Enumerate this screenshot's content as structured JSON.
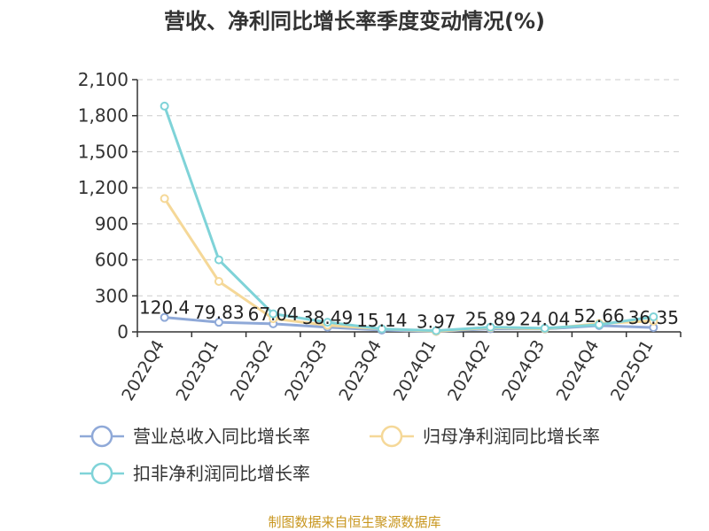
{
  "chart_data": {
    "type": "line",
    "title": "营收、净利同比增长率季度变动情况(%)",
    "categories": [
      "2022Q4",
      "2023Q1",
      "2023Q2",
      "2023Q3",
      "2023Q4",
      "2024Q1",
      "2024Q2",
      "2024Q3",
      "2024Q4",
      "2025Q1"
    ],
    "ylim": [
      0,
      2100
    ],
    "yticks": [
      0,
      300,
      600,
      900,
      1200,
      1500,
      1800,
      2100
    ],
    "ytick_labels": [
      "0",
      "300",
      "600",
      "900",
      "1,200",
      "1,500",
      "1,800",
      "2,100"
    ],
    "grid": true,
    "legend_position": "bottom",
    "series": [
      {
        "name": "营业总收入同比增长率",
        "color": "#8fa9d8",
        "values": [
          120.4,
          79.83,
          67.04,
          38.49,
          15.14,
          3.97,
          25.89,
          24.04,
          52.66,
          36.35
        ],
        "labels": [
          "120.4",
          "79.83",
          "67.04",
          "38.49",
          "15.14",
          "3.97",
          "25.89",
          "24.04",
          "52.66",
          "36.35"
        ]
      },
      {
        "name": "归母净利润同比增长率",
        "color": "#f5d898",
        "values": [
          1110,
          420,
          110,
          55,
          25,
          5,
          35,
          25,
          70,
          90
        ]
      },
      {
        "name": "扣非净利润同比增长率",
        "color": "#7fd3d8",
        "values": [
          1880,
          600,
          150,
          80,
          25,
          10,
          40,
          30,
          60,
          125
        ]
      }
    ],
    "source": "制图数据来自恒生聚源数据库"
  }
}
